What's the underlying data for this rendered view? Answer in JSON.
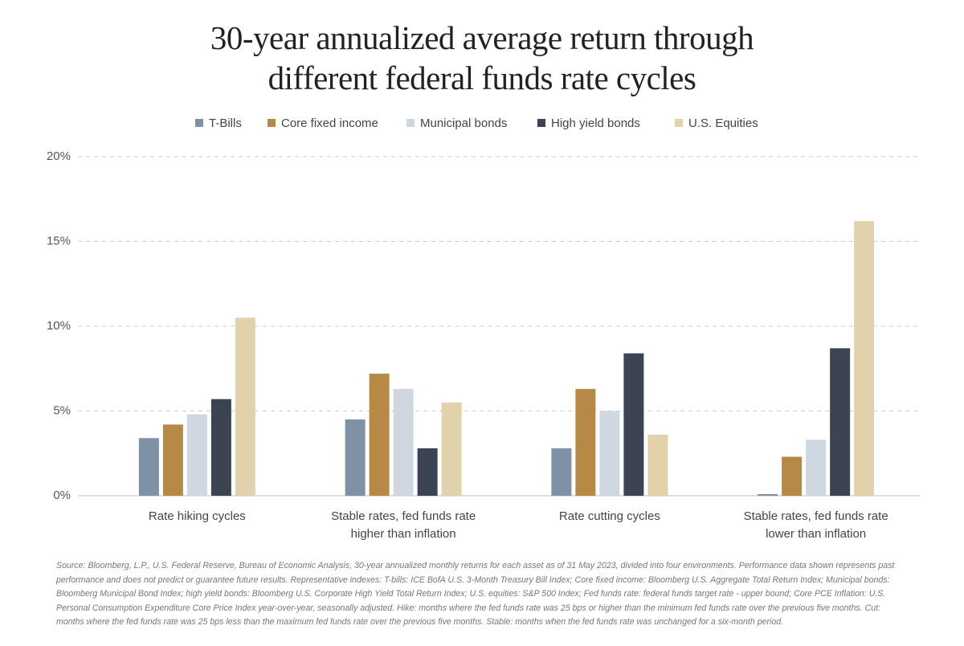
{
  "chart_data": {
    "type": "bar",
    "title": "30-year annualized average return through different federal funds rate cycles",
    "categories": [
      "Rate hiking cycles",
      "Stable rates, fed funds rate higher than inflation",
      "Rate cutting cycles",
      "Stable rates, fed funds rate lower than inflation"
    ],
    "series": [
      {
        "name": "T-Bills",
        "color": "#7f91a5",
        "values": [
          3.4,
          4.5,
          2.8,
          0.1
        ]
      },
      {
        "name": "Core fixed income",
        "color": "#b58a47",
        "values": [
          4.2,
          7.2,
          6.3,
          2.3
        ]
      },
      {
        "name": "Municipal bonds",
        "color": "#cfd8e1",
        "values": [
          4.8,
          6.3,
          5.0,
          3.3
        ]
      },
      {
        "name": "High yield bonds",
        "color": "#3c4454",
        "values": [
          5.7,
          2.8,
          8.4,
          8.7
        ]
      },
      {
        "name": "U.S. Equities",
        "color": "#e1d2ab",
        "values": [
          10.5,
          5.5,
          3.6,
          16.2
        ]
      }
    ],
    "ylim": [
      0,
      20
    ],
    "yticks": [
      {
        "value": 0,
        "label": "0%"
      },
      {
        "value": 5,
        "label": "5%"
      },
      {
        "value": 10,
        "label": "10%"
      },
      {
        "value": 15,
        "label": "15%"
      },
      {
        "value": 20,
        "label": "20%"
      }
    ],
    "grid": true,
    "legend": "top",
    "note": "Source: Bloomberg, L.P., U.S. Federal Reserve, Bureau of Economic Analysis, 30-year annualized monthly returns for each asset as of 31 May 2023, divided into four environments. Performance data shown represents past performance and does not predict or guarantee future results. Representative indexes: T-bills: ICE BofA U.S. 3-Month Treasury Bill Index; Core fixed income: Bloomberg U.S. Aggregate Total Return Index; Municipal bonds: Bloomberg Municipal Bond Index; high yield bonds: Bloomberg U.S. Corporate High Yield Total Return Index; U.S. equities: S&P 500 Index; Fed funds rate: federal funds target rate - upper bound; Core PCE Inflation: U.S. Personal Consumption Expenditure Core Price Index year-over-year, seasonally adjusted. Hike: months where the fed funds rate was 25 bps or higher than the minimum fed funds rate over the previous five months. Cut: months where the fed funds rate was 25 bps less than the maximum fed funds rate over the previous five months. Stable: months when the fed funds rate was unchanged for a six-month period."
  }
}
